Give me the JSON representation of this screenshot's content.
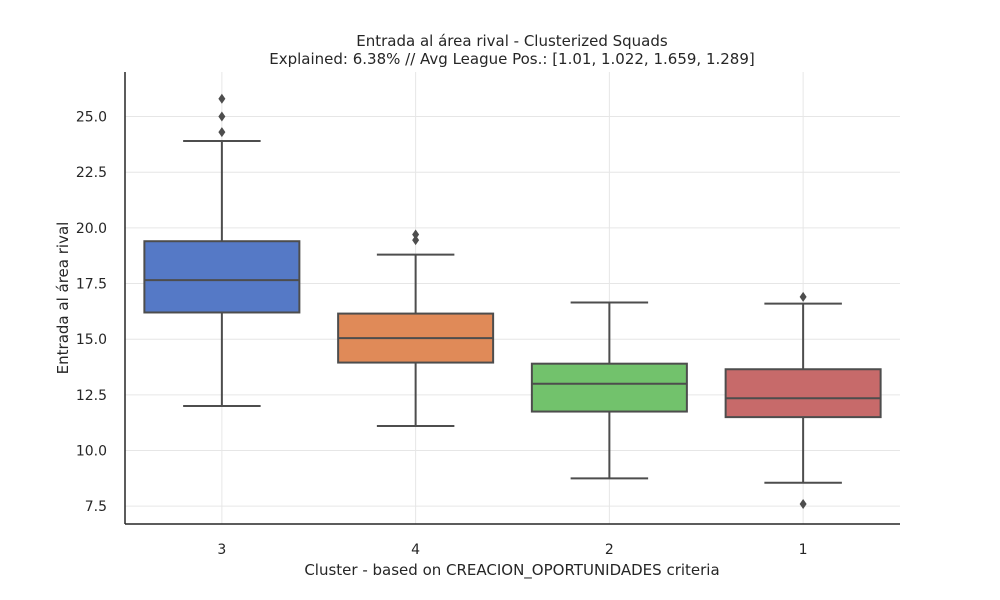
{
  "chart_data": {
    "type": "box",
    "title": "Entrada al área rival - Clusterized Squads",
    "subtitle": "Explained: 6.38% // Avg League Pos.: [1.01, 1.022, 1.659, 1.289]",
    "xlabel": "Cluster - based on CREACION_OPORTUNIDADES criteria",
    "ylabel": "Entrada al área rival",
    "ylim": [
      6.7,
      27.0
    ],
    "yticks": [
      "7.5",
      "10.0",
      "12.5",
      "15.0",
      "17.5",
      "20.0",
      "22.5",
      "25.0"
    ],
    "grid": true,
    "categories": [
      "3",
      "4",
      "2",
      "1"
    ],
    "boxes": [
      {
        "category": "3",
        "whisker_low": 12.0,
        "q1": 16.2,
        "median": 17.65,
        "q3": 19.4,
        "whisker_high": 23.9,
        "outliers": [
          24.3,
          25.0,
          25.8
        ],
        "color": "#5579c6"
      },
      {
        "category": "4",
        "whisker_low": 11.1,
        "q1": 13.95,
        "median": 15.05,
        "q3": 16.15,
        "whisker_high": 18.8,
        "outliers": [
          19.45,
          19.7
        ],
        "color": "#e08a58"
      },
      {
        "category": "2",
        "whisker_low": 8.75,
        "q1": 11.75,
        "median": 13.0,
        "q3": 13.9,
        "whisker_high": 16.65,
        "outliers": [],
        "color": "#72c26c"
      },
      {
        "category": "1",
        "whisker_low": 8.55,
        "q1": 11.5,
        "median": 12.35,
        "q3": 13.65,
        "whisker_high": 16.6,
        "outliers": [
          7.6,
          16.9
        ],
        "color": "#c76a6a"
      }
    ]
  }
}
